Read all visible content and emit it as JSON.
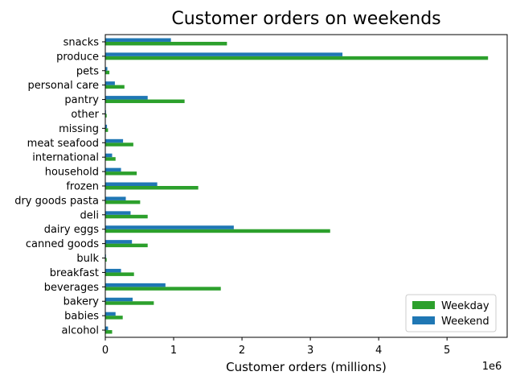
{
  "chart_data": {
    "type": "bar",
    "orientation": "horizontal",
    "title": "Customer orders on weekends",
    "xlabel": "Customer orders (millions)",
    "ylabel": "",
    "x_offset_text": "1e6",
    "xlim": [
      0,
      5880000
    ],
    "xticks": [
      0,
      1000000,
      2000000,
      3000000,
      4000000,
      5000000
    ],
    "xtick_labels": [
      "0",
      "1",
      "2",
      "3",
      "4",
      "5"
    ],
    "grid": false,
    "legend_position": "lower right",
    "categories": [
      "alcohol",
      "babies",
      "bakery",
      "beverages",
      "breakfast",
      "bulk",
      "canned goods",
      "dairy eggs",
      "deli",
      "dry goods pasta",
      "frozen",
      "household",
      "international",
      "meat seafood",
      "missing",
      "other",
      "pantry",
      "personal care",
      "pets",
      "produce",
      "snacks"
    ],
    "series": [
      {
        "name": "Weekday",
        "color": "#2ca02c",
        "values": [
          100000,
          255000,
          710000,
          1690000,
          420000,
          20000,
          620000,
          3290000,
          620000,
          510000,
          1360000,
          460000,
          150000,
          410000,
          40000,
          20000,
          1160000,
          280000,
          60000,
          5600000,
          1780000
        ]
      },
      {
        "name": "Weekend",
        "color": "#1f77b4",
        "values": [
          40000,
          150000,
          400000,
          880000,
          230000,
          10000,
          390000,
          1880000,
          370000,
          300000,
          760000,
          230000,
          100000,
          260000,
          25000,
          10000,
          620000,
          140000,
          30000,
          3470000,
          960000
        ]
      }
    ]
  }
}
